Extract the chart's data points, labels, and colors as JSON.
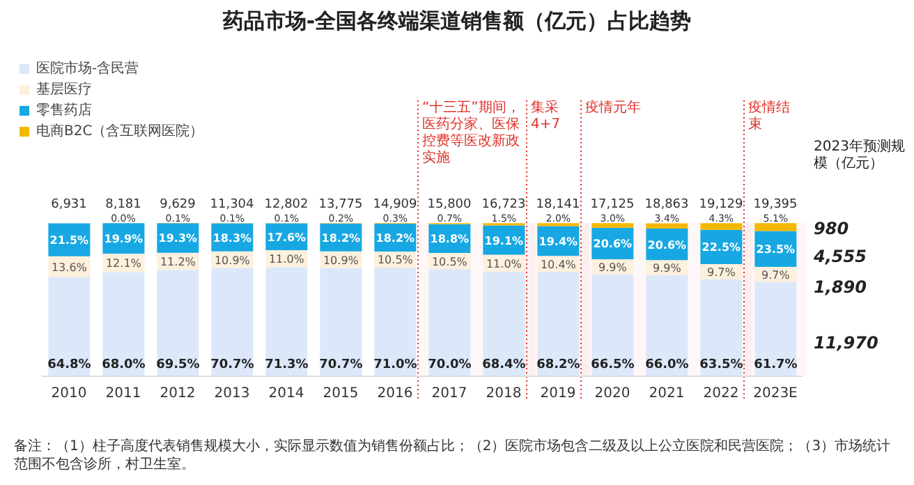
{
  "chart_data": {
    "type": "bar",
    "title": "药品市场-全国各终端渠道销售额（亿元）占比趋势",
    "stacked": true,
    "legend": "top left",
    "categories": [
      "2010",
      "2011",
      "2012",
      "2013",
      "2014",
      "2015",
      "2016",
      "2017",
      "2018",
      "2019",
      "2020",
      "2021",
      "2022",
      "2023E"
    ],
    "series": [
      {
        "name": "医院市场-含民营",
        "color": "#dce8fa",
        "values": [
          64.8,
          68.0,
          69.5,
          70.7,
          71.3,
          70.7,
          71.0,
          70.0,
          68.4,
          68.2,
          66.5,
          66.0,
          63.5,
          61.7
        ],
        "value_labels": [
          "64.8%",
          "68.0%",
          "69.5%",
          "70.7%",
          "71.3%",
          "70.7%",
          "71.0%",
          "70.0%",
          "68.4%",
          "68.2%",
          "66.5%",
          "66.0%",
          "63.5%",
          "61.7%"
        ]
      },
      {
        "name": "基层医疗",
        "color": "#fdf0dc",
        "values": [
          13.6,
          12.1,
          11.2,
          10.9,
          11.0,
          10.9,
          10.5,
          10.5,
          11.0,
          10.4,
          9.9,
          9.9,
          9.7,
          9.7
        ],
        "value_labels": [
          "13.6%",
          "12.1%",
          "11.2%",
          "10.9%",
          "11.0%",
          "10.9%",
          "10.5%",
          "10.5%",
          "11.0%",
          "10.4%",
          "9.9%",
          "9.9%",
          "9.7%",
          "9.7%"
        ]
      },
      {
        "name": "零售药店",
        "color": "#17a8e3",
        "values": [
          21.5,
          19.9,
          19.3,
          18.3,
          17.6,
          18.2,
          18.2,
          18.8,
          19.1,
          19.4,
          20.6,
          20.6,
          22.5,
          23.5
        ],
        "value_labels": [
          "21.5%",
          "19.9%",
          "19.3%",
          "18.3%",
          "17.6%",
          "18.2%",
          "18.2%",
          "18.8%",
          "19.1%",
          "19.4%",
          "20.6%",
          "20.6%",
          "22.5%",
          "23.5%"
        ]
      },
      {
        "name": "电商B2C（含互联网医院）",
        "color": "#f5b800",
        "values": [
          null,
          0.0,
          0.1,
          0.1,
          0.1,
          0.2,
          0.3,
          0.7,
          1.5,
          2.0,
          3.0,
          3.4,
          4.3,
          5.1
        ],
        "value_labels": [
          null,
          "0.0%",
          "0.1%",
          "0.1%",
          "0.1%",
          "0.2%",
          "0.3%",
          "0.7%",
          "1.5%",
          "2.0%",
          "3.0%",
          "3.4%",
          "4.3%",
          "5.1%"
        ]
      }
    ],
    "bands": [
      {
        "axis": "x",
        "from": "2017",
        "to": "2018",
        "label": "“十三五”期间，医药分家、医保控费等医改新政实施",
        "color": "#e0302a"
      },
      {
        "axis": "x",
        "from": "2019",
        "to": "2019",
        "label": "集采4+7",
        "color": "#e0302a"
      },
      {
        "axis": "x",
        "from": "2020",
        "to": "2022",
        "label": "疫情元年",
        "color": "#e0302a"
      },
      {
        "axis": "x",
        "from": "2023E",
        "to": "2023E",
        "label": "疫情结束",
        "color": "#e0302a"
      }
    ],
    "annotations": [
      "2023年预测规模（亿元）",
      "980",
      "4,555",
      "1,890",
      "11,970",
      "备注：（1）柱子高度代表销售规模大小，实际显示数值为销售份额占比；（2）医院市场包含二级及以上公立医院和民营医院；（3）市场统计范围不包含诊所，村卫生室。",
      "6,931",
      "8,181",
      "9,629",
      "11,304",
      "12,802",
      "13,775",
      "14,909",
      "15,800",
      "16,723",
      "18,141",
      "17,125",
      "18,863",
      "19,129",
      "19,395"
    ]
  }
}
